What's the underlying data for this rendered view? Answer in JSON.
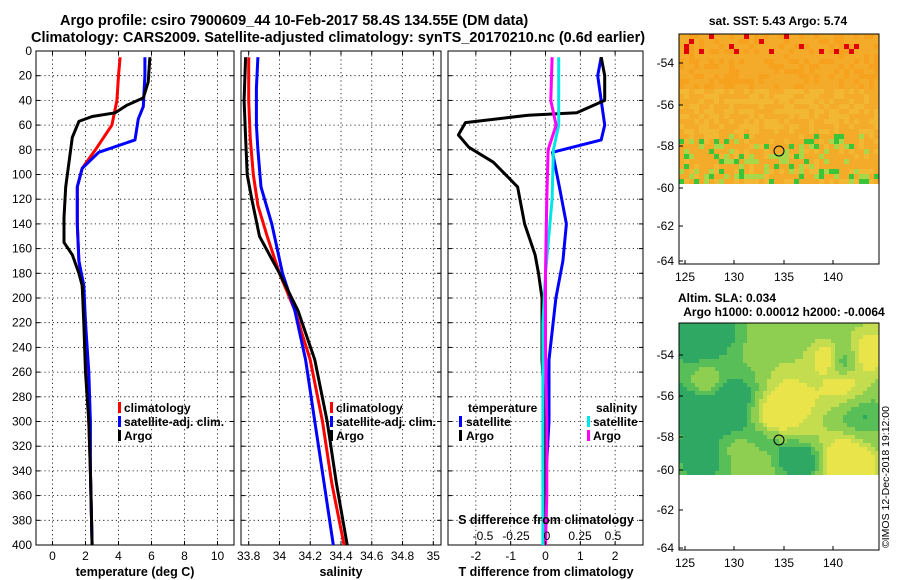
{
  "header": {
    "line1": "Argo profile: csiro 7900609_44 10-Feb-2017 58.4S 134.55E (DM data)",
    "line2": "Climatology: CARS2009. Satellite-adjusted climatology: synTS_20170210.nc (0.6d earlier)"
  },
  "colors": {
    "climatology": "#ff0000",
    "satellite": "#0000ff",
    "argo": "#000000",
    "sal_satellite": "#00e5e5",
    "sal_clim": "#ff00ff"
  },
  "chart_data": [
    {
      "type": "line",
      "panel": "temperature",
      "xlabel": "temperature (deg C)",
      "ylabel": "depth",
      "xlim": [
        -1,
        11
      ],
      "ylim": [
        400,
        0
      ],
      "x_ticks": [
        0,
        2,
        4,
        6,
        8,
        10
      ],
      "y_ticks": [
        0,
        20,
        40,
        60,
        80,
        100,
        120,
        140,
        160,
        180,
        200,
        220,
        240,
        260,
        280,
        300,
        320,
        340,
        360,
        380,
        400
      ],
      "legend": [
        "climatology",
        "satellite-adj. clim.",
        "Argo"
      ],
      "series": [
        {
          "name": "climatology",
          "color": "#ff0000",
          "points": [
            [
              4.1,
              5
            ],
            [
              4.0,
              20
            ],
            [
              3.9,
              40
            ],
            [
              3.6,
              60
            ],
            [
              2.6,
              80
            ],
            [
              1.8,
              95
            ],
            [
              1.5,
              110
            ],
            [
              1.5,
              140
            ],
            [
              1.6,
              170
            ],
            [
              1.8,
              190
            ],
            [
              2.0,
              220
            ],
            [
              2.1,
              260
            ],
            [
              2.2,
              300
            ],
            [
              2.3,
              340
            ],
            [
              2.4,
              400
            ]
          ]
        },
        {
          "name": "satellite-adj. clim.",
          "color": "#0000ff",
          "points": [
            [
              5.6,
              5
            ],
            [
              5.6,
              20
            ],
            [
              5.5,
              45
            ],
            [
              5.2,
              55
            ],
            [
              5.0,
              72
            ],
            [
              2.8,
              82
            ],
            [
              1.8,
              95
            ],
            [
              1.5,
              110
            ],
            [
              1.5,
              140
            ],
            [
              1.6,
              170
            ],
            [
              1.9,
              190
            ],
            [
              2.0,
              220
            ],
            [
              2.2,
              260
            ],
            [
              2.3,
              300
            ],
            [
              2.3,
              340
            ],
            [
              2.4,
              400
            ]
          ]
        },
        {
          "name": "Argo",
          "color": "#000000",
          "points": [
            [
              5.9,
              5
            ],
            [
              5.8,
              25
            ],
            [
              5.5,
              38
            ],
            [
              4.5,
              44
            ],
            [
              3.8,
              50
            ],
            [
              2.4,
              53
            ],
            [
              1.6,
              57
            ],
            [
              1.2,
              70
            ],
            [
              1.0,
              90
            ],
            [
              0.8,
              110
            ],
            [
              0.7,
              135
            ],
            [
              0.7,
              155
            ],
            [
              1.2,
              165
            ],
            [
              1.6,
              180
            ],
            [
              1.8,
              190
            ],
            [
              1.9,
              220
            ],
            [
              2.0,
              260
            ],
            [
              2.2,
              300
            ],
            [
              2.3,
              340
            ],
            [
              2.4,
              400
            ]
          ]
        }
      ]
    },
    {
      "type": "line",
      "panel": "salinity",
      "xlabel": "salinity",
      "ylabel": "depth",
      "xlim": [
        33.75,
        35.05
      ],
      "ylim": [
        400,
        0
      ],
      "x_tick_labels": [
        "33.8",
        "34",
        "34.2",
        "34.4",
        "34.6",
        "34.8",
        "35"
      ],
      "legend": [
        "climatology",
        "satellite-adj. clim.",
        "Argo"
      ],
      "series": [
        {
          "name": "climatology",
          "color": "#ff0000",
          "points": [
            [
              33.8,
              5
            ],
            [
              33.8,
              40
            ],
            [
              33.81,
              70
            ],
            [
              33.83,
              100
            ],
            [
              33.86,
              125
            ],
            [
              33.92,
              150
            ],
            [
              34.0,
              180
            ],
            [
              34.1,
              210
            ],
            [
              34.2,
              250
            ],
            [
              34.28,
              300
            ],
            [
              34.34,
              350
            ],
            [
              34.42,
              400
            ]
          ]
        },
        {
          "name": "satellite-adj. clim.",
          "color": "#0000ff",
          "points": [
            [
              33.86,
              5
            ],
            [
              33.85,
              30
            ],
            [
              33.85,
              60
            ],
            [
              33.86,
              80
            ],
            [
              33.88,
              110
            ],
            [
              33.95,
              140
            ],
            [
              34.02,
              180
            ],
            [
              34.1,
              210
            ],
            [
              34.17,
              250
            ],
            [
              34.23,
              300
            ],
            [
              34.29,
              350
            ],
            [
              34.35,
              400
            ]
          ]
        },
        {
          "name": "Argo",
          "color": "#000000",
          "points": [
            [
              33.78,
              5
            ],
            [
              33.77,
              40
            ],
            [
              33.78,
              70
            ],
            [
              33.79,
              100
            ],
            [
              33.82,
              120
            ],
            [
              33.87,
              150
            ],
            [
              34.0,
              180
            ],
            [
              34.12,
              210
            ],
            [
              34.23,
              250
            ],
            [
              34.31,
              300
            ],
            [
              34.37,
              350
            ],
            [
              34.44,
              400
            ]
          ]
        }
      ]
    },
    {
      "type": "line",
      "panel": "difference",
      "xlabel": "T difference from climatology",
      "top_label": "S difference from climatology",
      "xlim": [
        -2.8,
        2.8
      ],
      "x_tick_labels": [
        "-2",
        "-1",
        "0",
        "1",
        "2"
      ],
      "s_tick_labels": [
        "-0.5",
        "-0.25",
        "0",
        "0.25",
        "0.5"
      ],
      "legend_temperature_title": "temperature",
      "legend_salinity_title": "salinity",
      "legend_temperature": [
        "satellite",
        "Argo"
      ],
      "legend_salinity": [
        "satellite",
        "Argo"
      ],
      "series": [
        {
          "name": "T satellite",
          "color": "#0000ff",
          "points": [
            [
              1.6,
              5
            ],
            [
              1.5,
              20
            ],
            [
              1.6,
              40
            ],
            [
              1.7,
              60
            ],
            [
              1.6,
              72
            ],
            [
              0.2,
              82
            ],
            [
              0.4,
              110
            ],
            [
              0.6,
              140
            ],
            [
              0.5,
              170
            ],
            [
              0.3,
              200
            ],
            [
              0.1,
              250
            ],
            [
              0.1,
              300
            ],
            [
              0.0,
              350
            ],
            [
              0.0,
              400
            ]
          ]
        },
        {
          "name": "T Argo",
          "color": "#000000",
          "points": [
            [
              1.6,
              5
            ],
            [
              1.7,
              20
            ],
            [
              1.7,
              40
            ],
            [
              0.9,
              50
            ],
            [
              -0.5,
              52
            ],
            [
              -2.3,
              58
            ],
            [
              -2.5,
              68
            ],
            [
              -2.2,
              78
            ],
            [
              -1.5,
              90
            ],
            [
              -0.8,
              110
            ],
            [
              -0.6,
              140
            ],
            [
              -0.3,
              165
            ],
            [
              -0.2,
              180
            ],
            [
              -0.1,
              200
            ],
            [
              -0.1,
              250
            ],
            [
              0.0,
              300
            ],
            [
              -0.05,
              350
            ],
            [
              0.0,
              400
            ]
          ]
        },
        {
          "name": "S satellite",
          "color": "#00e5e5",
          "points": [
            [
              0.1,
              5
            ],
            [
              0.1,
              40
            ],
            [
              0.1,
              60
            ],
            [
              0.06,
              80
            ],
            [
              0.05,
              120
            ],
            [
              0.0,
              180
            ],
            [
              -0.02,
              220
            ],
            [
              -0.02,
              300
            ],
            [
              -0.02,
              360
            ],
            [
              -0.02,
              400
            ]
          ]
        },
        {
          "name": "S Argo",
          "color": "#ff00ff",
          "points": [
            [
              0.05,
              5
            ],
            [
              0.04,
              40
            ],
            [
              0.08,
              60
            ],
            [
              0.02,
              80
            ],
            [
              0.01,
              120
            ],
            [
              0.0,
              180
            ],
            [
              0.0,
              240
            ],
            [
              0.01,
              300
            ],
            [
              0.01,
              360
            ],
            [
              0.0,
              400
            ]
          ]
        }
      ]
    },
    {
      "type": "heatmap",
      "panel": "sst-map",
      "title": "sat. SST: 5.43 Argo: 5.74",
      "x_tick_labels": [
        "125",
        "130",
        "135",
        "140"
      ],
      "y_tick_labels": [
        "-54",
        "-56",
        "-58",
        "-60",
        "-62",
        "-64"
      ],
      "marker_lon": 134.55,
      "marker_lat": -58.4
    },
    {
      "type": "heatmap",
      "panel": "sla-map",
      "title": "Altim. SLA: 0.034",
      "subtitle": "Argo h1000: 0.00012 h2000: -0.0064",
      "x_tick_labels": [
        "125",
        "130",
        "135",
        "140"
      ],
      "y_tick_labels": [
        "-54",
        "-56",
        "-58",
        "-60",
        "-62",
        "-64"
      ],
      "marker_lon": 134.55,
      "marker_lat": -58.4
    }
  ],
  "watermark": "©IMOS 12-Dec-2018 19:12:00"
}
